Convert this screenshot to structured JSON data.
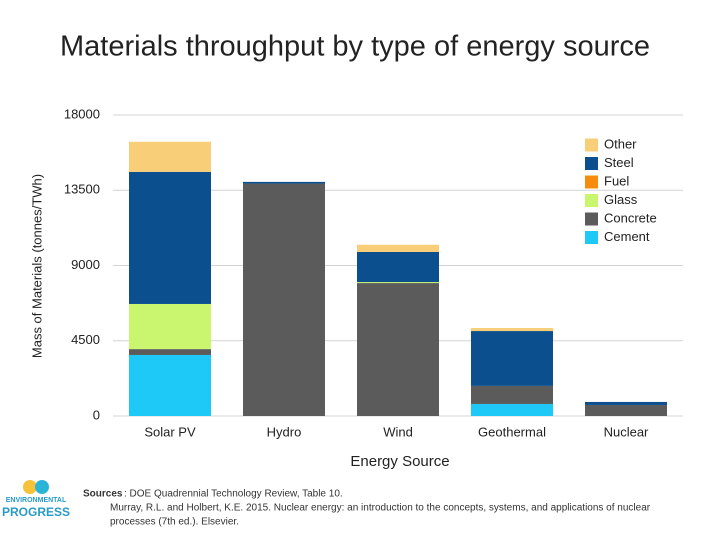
{
  "chart_data": {
    "type": "stacked_bar",
    "title": "Materials throughput by type of energy source",
    "x_label": "Energy Source",
    "y_label": "Mass of Materials (tonnes/TWh)",
    "categories": [
      "Solar PV",
      "Hydro",
      "Wind",
      "Geothermal",
      "Nuclear"
    ],
    "series": [
      {
        "name": "Cement",
        "color": "#1ec8f7",
        "values": [
          3650,
          0,
          0,
          720,
          0
        ]
      },
      {
        "name": "Concrete",
        "color": "#5b5b5b",
        "values": [
          350,
          13900,
          7950,
          1080,
          660
        ]
      },
      {
        "name": "Glass",
        "color": "#c9f56f",
        "values": [
          2700,
          0,
          60,
          0,
          0
        ]
      },
      {
        "name": "Fuel",
        "color": "#f78c0c",
        "values": [
          0,
          0,
          0,
          0,
          0
        ]
      },
      {
        "name": "Steel",
        "color": "#0b4f8f",
        "values": [
          7900,
          100,
          1800,
          3280,
          180
        ]
      },
      {
        "name": "Other",
        "color": "#f8cf78",
        "values": [
          1800,
          0,
          430,
          180,
          0
        ]
      }
    ],
    "ylim": [
      0,
      18000
    ],
    "yticks": [
      0,
      4500,
      9000,
      13500,
      18000
    ],
    "grid": true,
    "legend": "upper right"
  },
  "footer": {
    "logo": [
      "ENVIRONMENTAL",
      "PROGRESS"
    ],
    "sources_label": "Sources",
    "sources": [
      ": DOE Quadrennial Technology Review, Table 10.",
      "Murray, R.L. and Holbert, K.E. 2015. Nuclear energy: an introduction to the concepts, systems, and applications of nuclear",
      "processes (7th ed.). Elsevier."
    ]
  }
}
